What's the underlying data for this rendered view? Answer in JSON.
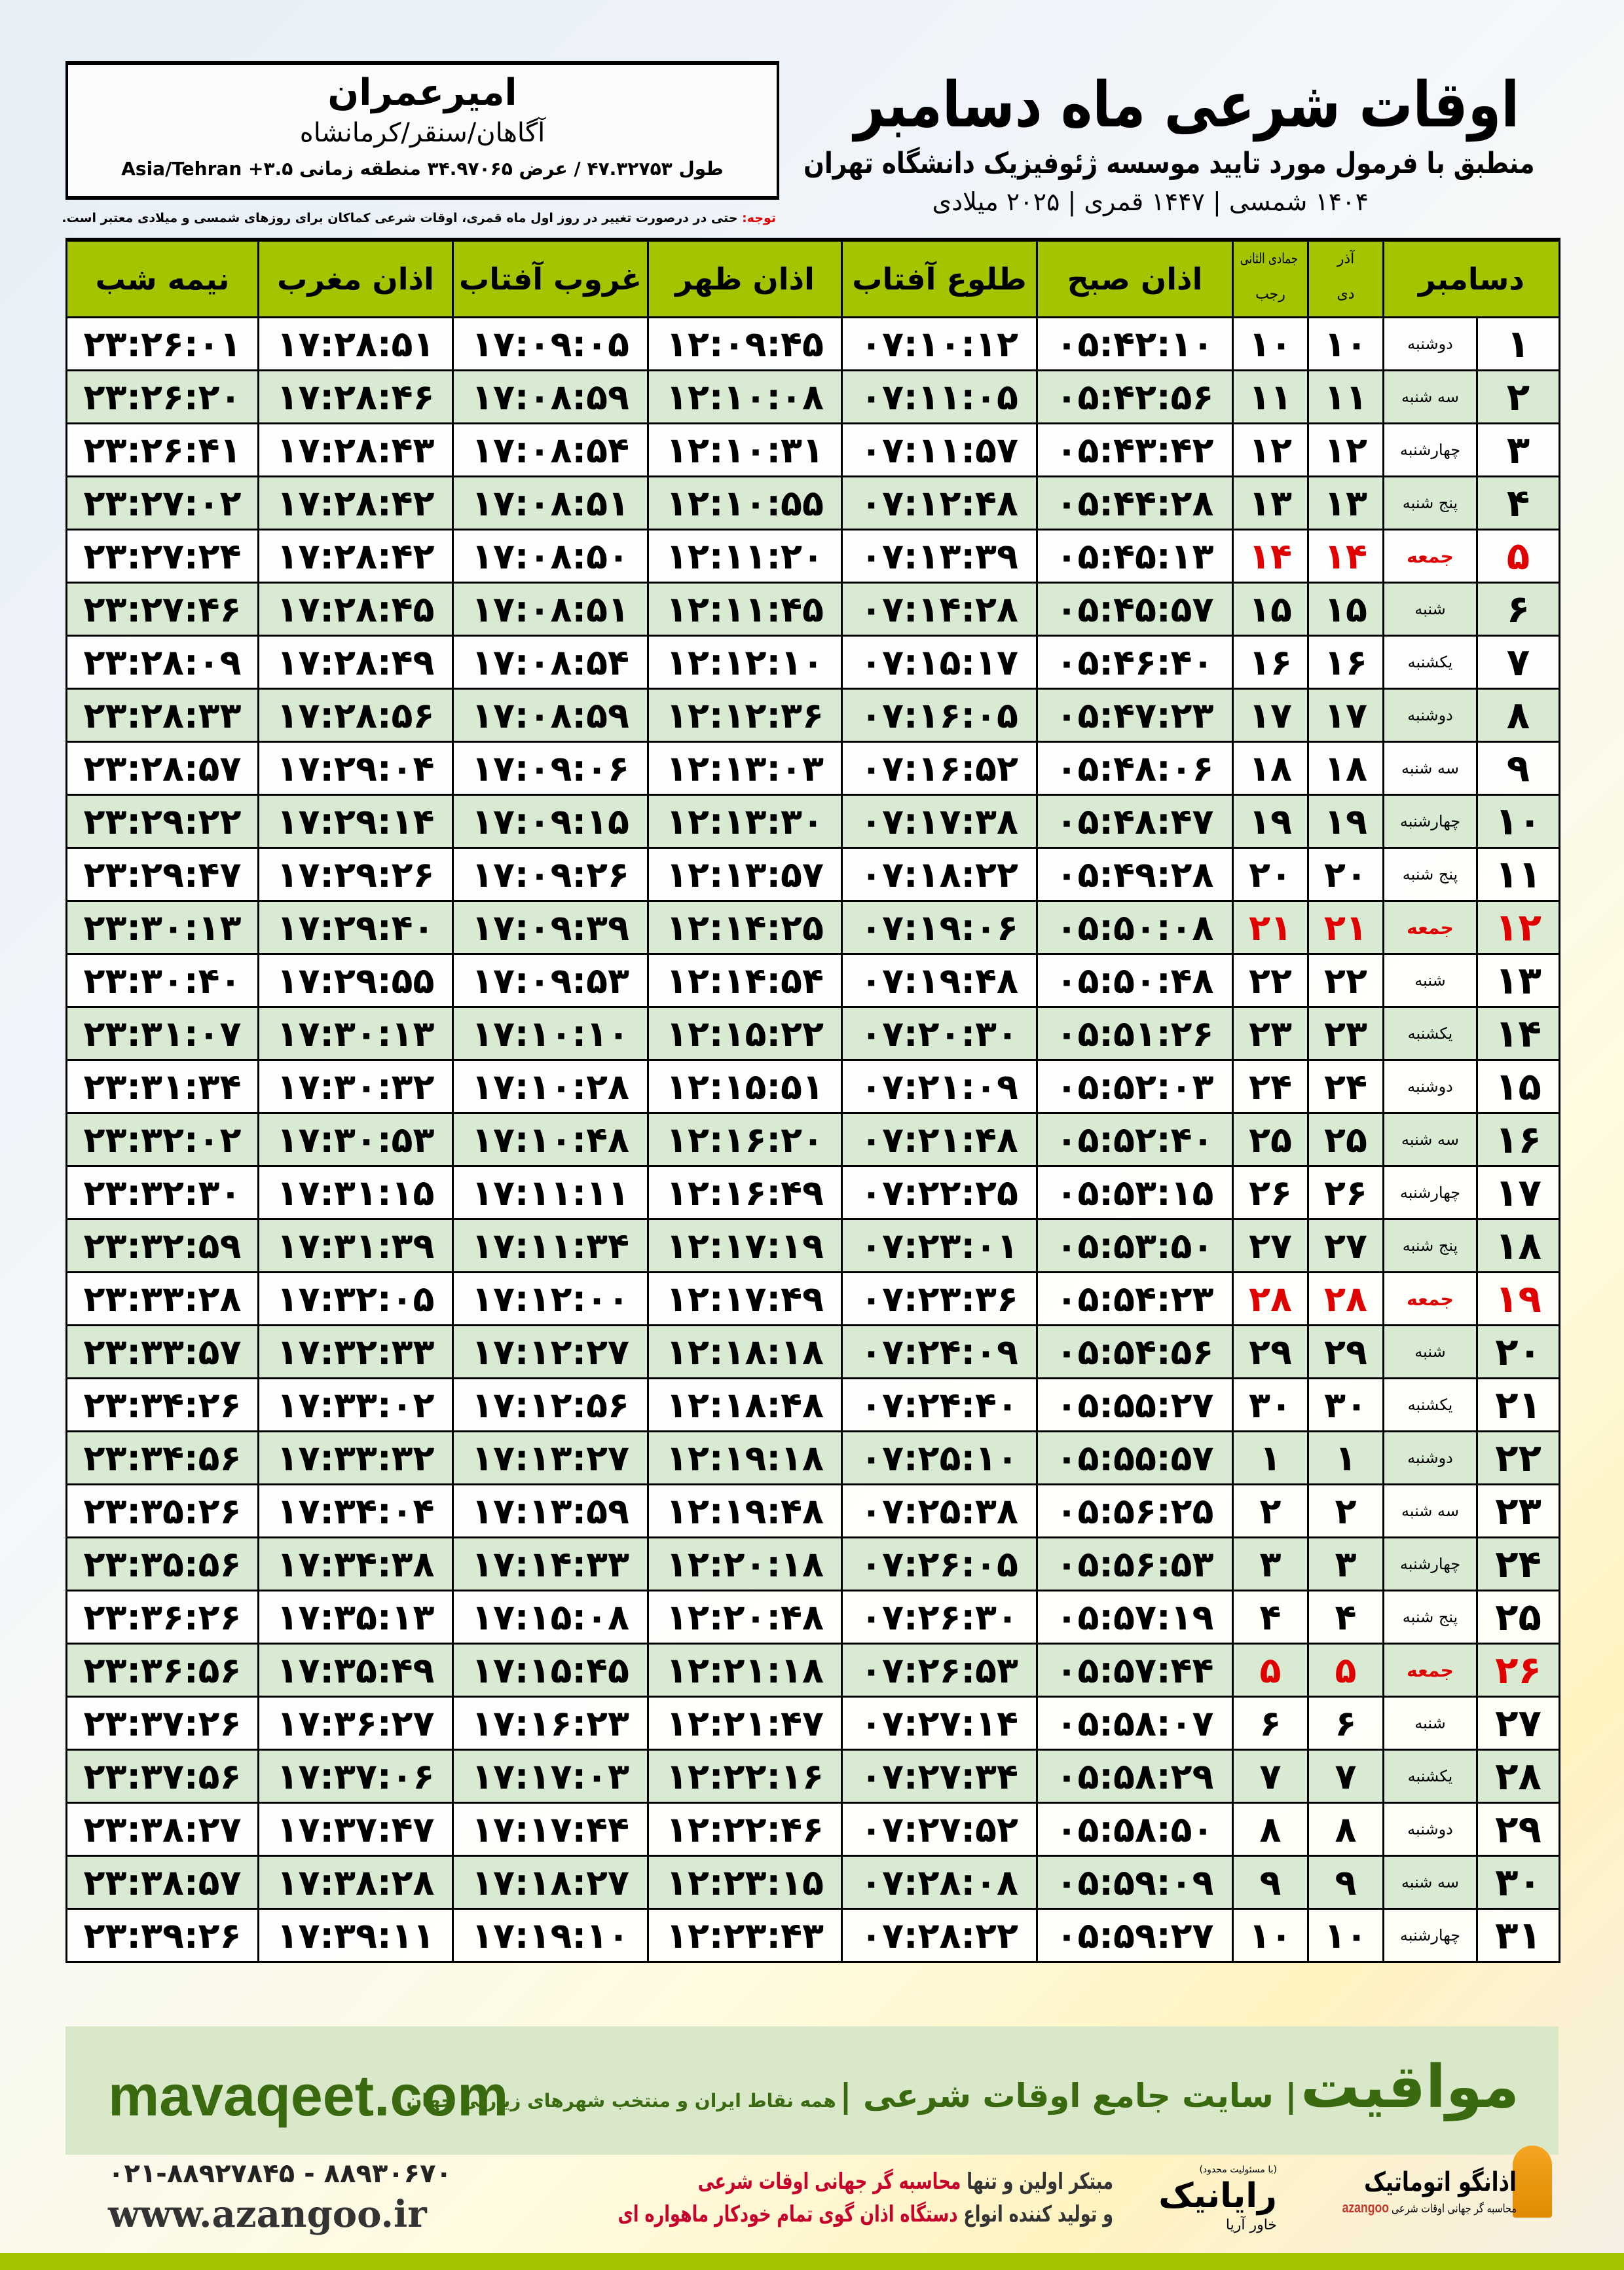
{
  "header": {
    "title": "اوقات شرعی ماه دسامبر",
    "subtitle": "منطبق با فرمول مورد تایید موسسه ژئوفیزیک دانشگاه تهران",
    "dates": "۱۴۰۴ شمسی | ۱۴۴۷ قمری | ۲۰۲۵ میلادی"
  },
  "location": {
    "name": "امیرعمران",
    "path": "آگاهان/سنقر/کرمانشاه",
    "coords": "طول ۴۷.۳۲۷۵۳ / عرض ۳۴.۹۷۰۶۵ منطقه زمانی ۳.۵+ Asia/Tehran"
  },
  "note": {
    "label": "توجه:",
    "text": " حتی در درصورت تغییر در روز اول ماه قمری، اوقات شرعی کماکان برای روزهای شمسی و میلادی معتبر است."
  },
  "columns": {
    "day": "دسامبر",
    "shamsi_top": "آذر",
    "shamsi_bottom": "دی",
    "qamari_top": "جمادی الثانی",
    "qamari_bottom": "رجب",
    "fajr": "اذان صبح",
    "sunrise": "طلوع آفتاب",
    "dhuhr": "اذان ظهر",
    "sunset": "غروب آفتاب",
    "maghrib": "اذان مغرب",
    "midnight": "نیمه شب"
  },
  "colors": {
    "header_green": "#a4c400",
    "row_alt": "#d9ead3",
    "friday": "#e00000",
    "brand_green": "#3a6a10"
  },
  "rows": [
    [
      "۱",
      "دوشنبه",
      "۱۰",
      "۱۰",
      "۰۵:۴۲:۱۰",
      "۰۷:۱۰:۱۲",
      "۱۲:۰۹:۴۵",
      "۱۷:۰۹:۰۵",
      "۱۷:۲۸:۵۱",
      "۲۳:۲۶:۰۱"
    ],
    [
      "۲",
      "سه شنبه",
      "۱۱",
      "۱۱",
      "۰۵:۴۲:۵۶",
      "۰۷:۱۱:۰۵",
      "۱۲:۱۰:۰۸",
      "۱۷:۰۸:۵۹",
      "۱۷:۲۸:۴۶",
      "۲۳:۲۶:۲۰"
    ],
    [
      "۳",
      "چهارشنبه",
      "۱۲",
      "۱۲",
      "۰۵:۴۳:۴۲",
      "۰۷:۱۱:۵۷",
      "۱۲:۱۰:۳۱",
      "۱۷:۰۸:۵۴",
      "۱۷:۲۸:۴۳",
      "۲۳:۲۶:۴۱"
    ],
    [
      "۴",
      "پنج شنبه",
      "۱۳",
      "۱۳",
      "۰۵:۴۴:۲۸",
      "۰۷:۱۲:۴۸",
      "۱۲:۱۰:۵۵",
      "۱۷:۰۸:۵۱",
      "۱۷:۲۸:۴۲",
      "۲۳:۲۷:۰۲"
    ],
    [
      "۵",
      "جمعه",
      "۱۴",
      "۱۴",
      "۰۵:۴۵:۱۳",
      "۰۷:۱۳:۳۹",
      "۱۲:۱۱:۲۰",
      "۱۷:۰۸:۵۰",
      "۱۷:۲۸:۴۲",
      "۲۳:۲۷:۲۴"
    ],
    [
      "۶",
      "شنبه",
      "۱۵",
      "۱۵",
      "۰۵:۴۵:۵۷",
      "۰۷:۱۴:۲۸",
      "۱۲:۱۱:۴۵",
      "۱۷:۰۸:۵۱",
      "۱۷:۲۸:۴۵",
      "۲۳:۲۷:۴۶"
    ],
    [
      "۷",
      "یکشنبه",
      "۱۶",
      "۱۶",
      "۰۵:۴۶:۴۰",
      "۰۷:۱۵:۱۷",
      "۱۲:۱۲:۱۰",
      "۱۷:۰۸:۵۴",
      "۱۷:۲۸:۴۹",
      "۲۳:۲۸:۰۹"
    ],
    [
      "۸",
      "دوشنبه",
      "۱۷",
      "۱۷",
      "۰۵:۴۷:۲۳",
      "۰۷:۱۶:۰۵",
      "۱۲:۱۲:۳۶",
      "۱۷:۰۸:۵۹",
      "۱۷:۲۸:۵۶",
      "۲۳:۲۸:۳۳"
    ],
    [
      "۹",
      "سه شنبه",
      "۱۸",
      "۱۸",
      "۰۵:۴۸:۰۶",
      "۰۷:۱۶:۵۲",
      "۱۲:۱۳:۰۳",
      "۱۷:۰۹:۰۶",
      "۱۷:۲۹:۰۴",
      "۲۳:۲۸:۵۷"
    ],
    [
      "۱۰",
      "چهارشنبه",
      "۱۹",
      "۱۹",
      "۰۵:۴۸:۴۷",
      "۰۷:۱۷:۳۸",
      "۱۲:۱۳:۳۰",
      "۱۷:۰۹:۱۵",
      "۱۷:۲۹:۱۴",
      "۲۳:۲۹:۲۲"
    ],
    [
      "۱۱",
      "پنج شنبه",
      "۲۰",
      "۲۰",
      "۰۵:۴۹:۲۸",
      "۰۷:۱۸:۲۲",
      "۱۲:۱۳:۵۷",
      "۱۷:۰۹:۲۶",
      "۱۷:۲۹:۲۶",
      "۲۳:۲۹:۴۷"
    ],
    [
      "۱۲",
      "جمعه",
      "۲۱",
      "۲۱",
      "۰۵:۵۰:۰۸",
      "۰۷:۱۹:۰۶",
      "۱۲:۱۴:۲۵",
      "۱۷:۰۹:۳۹",
      "۱۷:۲۹:۴۰",
      "۲۳:۳۰:۱۳"
    ],
    [
      "۱۳",
      "شنبه",
      "۲۲",
      "۲۲",
      "۰۵:۵۰:۴۸",
      "۰۷:۱۹:۴۸",
      "۱۲:۱۴:۵۴",
      "۱۷:۰۹:۵۳",
      "۱۷:۲۹:۵۵",
      "۲۳:۳۰:۴۰"
    ],
    [
      "۱۴",
      "یکشنبه",
      "۲۳",
      "۲۳",
      "۰۵:۵۱:۲۶",
      "۰۷:۲۰:۳۰",
      "۱۲:۱۵:۲۲",
      "۱۷:۱۰:۱۰",
      "۱۷:۳۰:۱۳",
      "۲۳:۳۱:۰۷"
    ],
    [
      "۱۵",
      "دوشنبه",
      "۲۴",
      "۲۴",
      "۰۵:۵۲:۰۳",
      "۰۷:۲۱:۰۹",
      "۱۲:۱۵:۵۱",
      "۱۷:۱۰:۲۸",
      "۱۷:۳۰:۳۲",
      "۲۳:۳۱:۳۴"
    ],
    [
      "۱۶",
      "سه شنبه",
      "۲۵",
      "۲۵",
      "۰۵:۵۲:۴۰",
      "۰۷:۲۱:۴۸",
      "۱۲:۱۶:۲۰",
      "۱۷:۱۰:۴۸",
      "۱۷:۳۰:۵۳",
      "۲۳:۳۲:۰۲"
    ],
    [
      "۱۷",
      "چهارشنبه",
      "۲۶",
      "۲۶",
      "۰۵:۵۳:۱۵",
      "۰۷:۲۲:۲۵",
      "۱۲:۱۶:۴۹",
      "۱۷:۱۱:۱۱",
      "۱۷:۳۱:۱۵",
      "۲۳:۳۲:۳۰"
    ],
    [
      "۱۸",
      "پنج شنبه",
      "۲۷",
      "۲۷",
      "۰۵:۵۳:۵۰",
      "۰۷:۲۳:۰۱",
      "۱۲:۱۷:۱۹",
      "۱۷:۱۱:۳۴",
      "۱۷:۳۱:۳۹",
      "۲۳:۳۲:۵۹"
    ],
    [
      "۱۹",
      "جمعه",
      "۲۸",
      "۲۸",
      "۰۵:۵۴:۲۳",
      "۰۷:۲۳:۳۶",
      "۱۲:۱۷:۴۹",
      "۱۷:۱۲:۰۰",
      "۱۷:۳۲:۰۵",
      "۲۳:۳۳:۲۸"
    ],
    [
      "۲۰",
      "شنبه",
      "۲۹",
      "۲۹",
      "۰۵:۵۴:۵۶",
      "۰۷:۲۴:۰۹",
      "۱۲:۱۸:۱۸",
      "۱۷:۱۲:۲۷",
      "۱۷:۳۲:۳۳",
      "۲۳:۳۳:۵۷"
    ],
    [
      "۲۱",
      "یکشنبه",
      "۳۰",
      "۳۰",
      "۰۵:۵۵:۲۷",
      "۰۷:۲۴:۴۰",
      "۱۲:۱۸:۴۸",
      "۱۷:۱۲:۵۶",
      "۱۷:۳۳:۰۲",
      "۲۳:۳۴:۲۶"
    ],
    [
      "۲۲",
      "دوشنبه",
      "۱",
      "۱",
      "۰۵:۵۵:۵۷",
      "۰۷:۲۵:۱۰",
      "۱۲:۱۹:۱۸",
      "۱۷:۱۳:۲۷",
      "۱۷:۳۳:۳۲",
      "۲۳:۳۴:۵۶"
    ],
    [
      "۲۳",
      "سه شنبه",
      "۲",
      "۲",
      "۰۵:۵۶:۲۵",
      "۰۷:۲۵:۳۸",
      "۱۲:۱۹:۴۸",
      "۱۷:۱۳:۵۹",
      "۱۷:۳۴:۰۴",
      "۲۳:۳۵:۲۶"
    ],
    [
      "۲۴",
      "چهارشنبه",
      "۳",
      "۳",
      "۰۵:۵۶:۵۳",
      "۰۷:۲۶:۰۵",
      "۱۲:۲۰:۱۸",
      "۱۷:۱۴:۳۳",
      "۱۷:۳۴:۳۸",
      "۲۳:۳۵:۵۶"
    ],
    [
      "۲۵",
      "پنج شنبه",
      "۴",
      "۴",
      "۰۵:۵۷:۱۹",
      "۰۷:۲۶:۳۰",
      "۱۲:۲۰:۴۸",
      "۱۷:۱۵:۰۸",
      "۱۷:۳۵:۱۳",
      "۲۳:۳۶:۲۶"
    ],
    [
      "۲۶",
      "جمعه",
      "۵",
      "۵",
      "۰۵:۵۷:۴۴",
      "۰۷:۲۶:۵۳",
      "۱۲:۲۱:۱۸",
      "۱۷:۱۵:۴۵",
      "۱۷:۳۵:۴۹",
      "۲۳:۳۶:۵۶"
    ],
    [
      "۲۷",
      "شنبه",
      "۶",
      "۶",
      "۰۵:۵۸:۰۷",
      "۰۷:۲۷:۱۴",
      "۱۲:۲۱:۴۷",
      "۱۷:۱۶:۲۳",
      "۱۷:۳۶:۲۷",
      "۲۳:۳۷:۲۶"
    ],
    [
      "۲۸",
      "یکشنبه",
      "۷",
      "۷",
      "۰۵:۵۸:۲۹",
      "۰۷:۲۷:۳۴",
      "۱۲:۲۲:۱۶",
      "۱۷:۱۷:۰۳",
      "۱۷:۳۷:۰۶",
      "۲۳:۳۷:۵۶"
    ],
    [
      "۲۹",
      "دوشنبه",
      "۸",
      "۸",
      "۰۵:۵۸:۵۰",
      "۰۷:۲۷:۵۲",
      "۱۲:۲۲:۴۶",
      "۱۷:۱۷:۴۴",
      "۱۷:۳۷:۴۷",
      "۲۳:۳۸:۲۷"
    ],
    [
      "۳۰",
      "سه شنبه",
      "۹",
      "۹",
      "۰۵:۵۹:۰۹",
      "۰۷:۲۸:۰۸",
      "۱۲:۲۳:۱۵",
      "۱۷:۱۸:۲۷",
      "۱۷:۳۸:۲۸",
      "۲۳:۳۸:۵۷"
    ],
    [
      "۳۱",
      "چهارشنبه",
      "۱۰",
      "۱۰",
      "۰۵:۵۹:۲۷",
      "۰۷:۲۸:۲۲",
      "۱۲:۲۳:۴۳",
      "۱۷:۱۹:۱۰",
      "۱۷:۳۹:۱۱",
      "۲۳:۳۹:۲۶"
    ]
  ],
  "friday_label": "جمعه",
  "footer": {
    "brand": "مواقیت",
    "tagline": "| سایت جامع اوقات شرعی |",
    "tagline_sub": "همه نقاط ایران و منتخب شهرهای زیارتی جهان",
    "site": "mavaqeet.com",
    "promo_1a": "مبتکر اولین و تنها ",
    "promo_1b": "محاسبه گر جهانی اوقات شرعی",
    "promo_2a": "و تولید کننده انواع ",
    "promo_2b": "دستگاه اذان گوی تمام خودکار ماهواره ای",
    "phones": "۰۲۱-۸۸۹۲۷۸۴۵ - ۸۸۹۳۰۶۷۰",
    "web": "www.azangoo.ir",
    "logo_rayanik_small": "(با مسئولیت محدود)",
    "logo_rayanik": "رایانیک",
    "logo_rayanik_sub": "خاور آریا",
    "logo_azangoo": "اذانگو اتوماتیک",
    "logo_azangoo_sub": "محاسبه گر جهانی اوقات شرعی",
    "logo_azangoo_latin": "azangoo"
  }
}
